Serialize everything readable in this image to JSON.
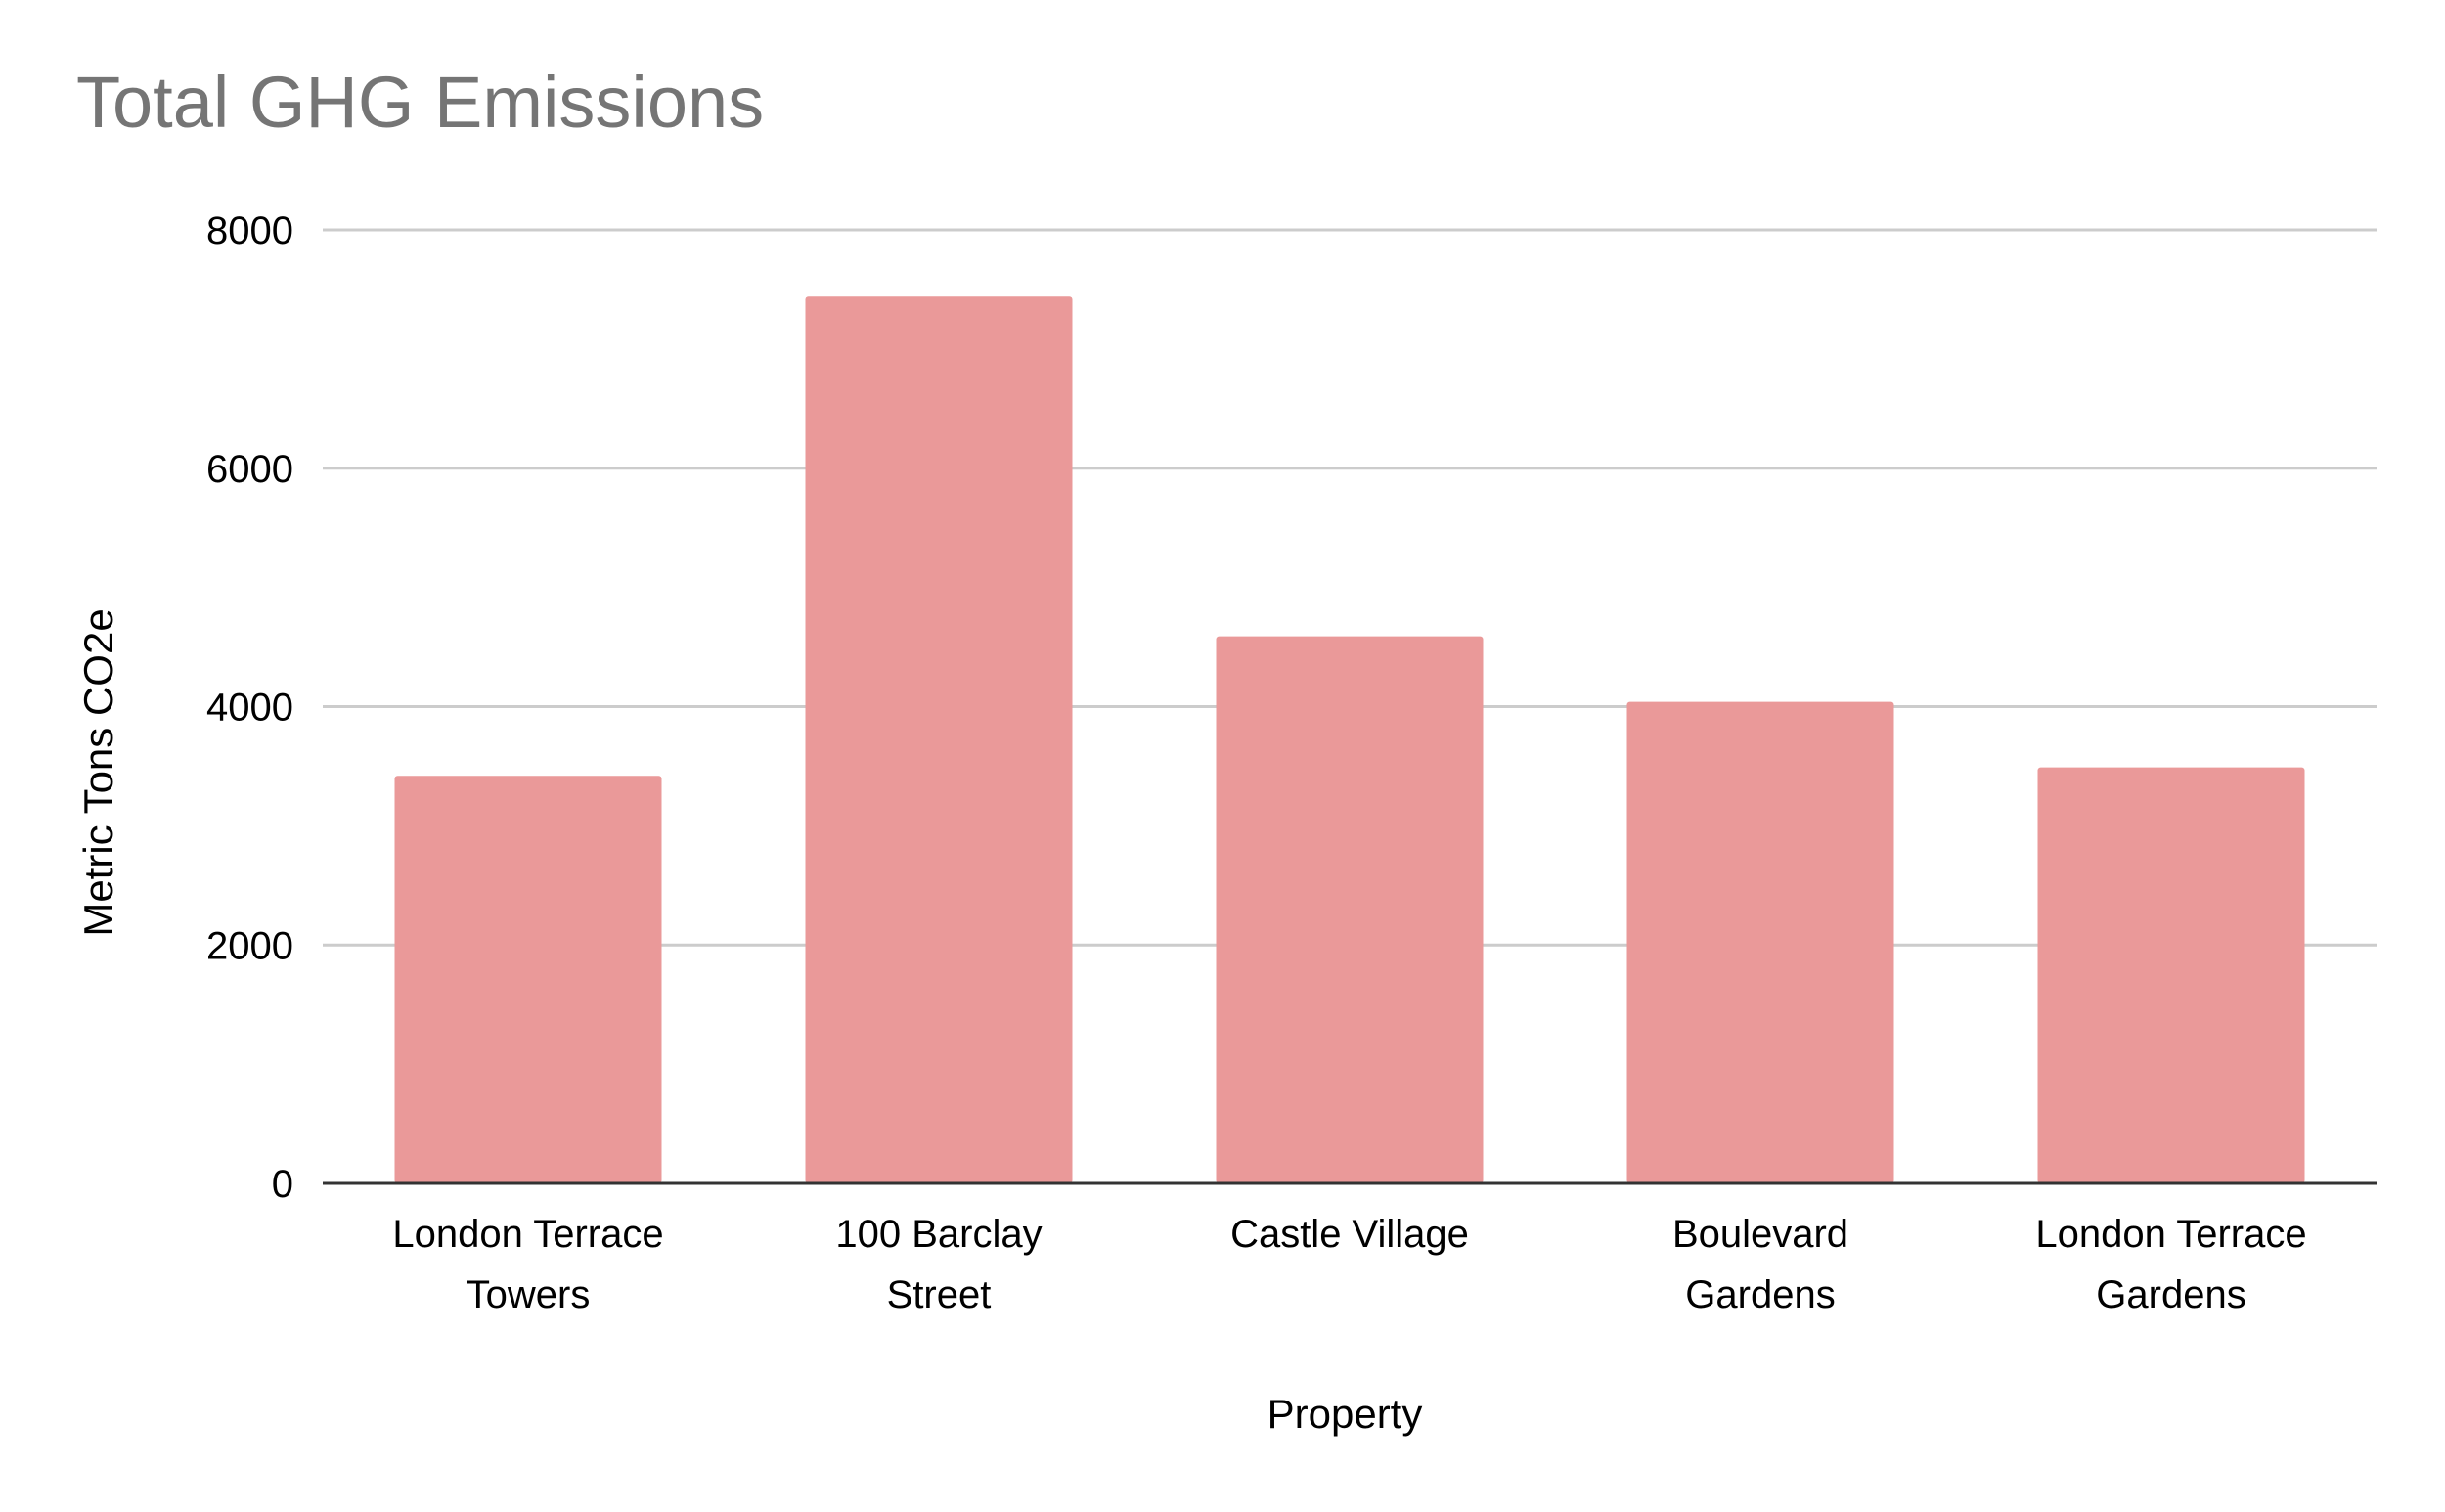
{
  "chart_data": {
    "type": "bar",
    "title": "Total GHG Emissions",
    "xlabel": "Property",
    "ylabel": "Metric Tons CO2e",
    "categories": [
      [
        "London Terrace",
        "Towers"
      ],
      [
        "100 Barclay",
        "Street"
      ],
      [
        "Castle Village"
      ],
      [
        "Boulevard",
        "Gardens"
      ],
      [
        "London Terrace",
        "Gardens"
      ]
    ],
    "values": [
      3420,
      7440,
      4590,
      4040,
      3490
    ],
    "ylim": [
      0,
      8000
    ],
    "yticks": [
      0,
      2000,
      4000,
      6000,
      8000
    ],
    "grid": true,
    "legend": "none",
    "colors": {
      "bar": "#ea9999",
      "grid": "#cccccc",
      "axis": "#333333",
      "text": "#000000",
      "title": "#757575"
    }
  }
}
